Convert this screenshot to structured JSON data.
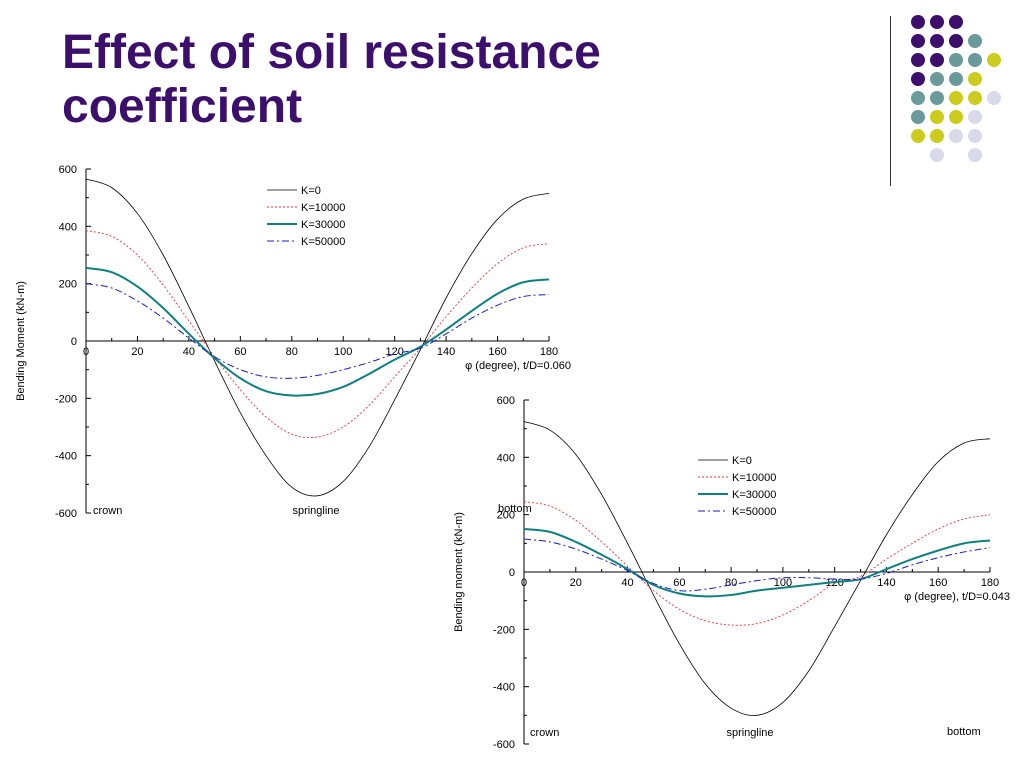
{
  "slide": {
    "title_line1": "Effect of soil resistance",
    "title_line2": "coefficient"
  },
  "decoration": {
    "dot_colors": {
      "purple": "#3b0f6b",
      "teal": "#6a9a9a",
      "yellow": "#cccc1e",
      "lavender": "#d9d9ea"
    },
    "dot_rows": [
      [
        "purple",
        "purple",
        "purple",
        null,
        null
      ],
      [
        "purple",
        "purple",
        "purple",
        "teal",
        null
      ],
      [
        "purple",
        "purple",
        "teal",
        "teal",
        "yellow"
      ],
      [
        "purple",
        "teal",
        "teal",
        "yellow",
        null
      ],
      [
        "teal",
        "teal",
        "yellow",
        "yellow",
        "lavender"
      ],
      [
        "teal",
        "yellow",
        "yellow",
        "lavender",
        null
      ],
      [
        "yellow",
        "yellow",
        "lavender",
        "lavender",
        null
      ],
      [
        null,
        "lavender",
        null,
        "lavender",
        null
      ]
    ]
  },
  "chart_data": [
    {
      "type": "line",
      "ylabel": "Bending Moment (kN-m)",
      "xlabel": "φ (degree), t/D=0.060",
      "xlim": [
        0,
        180
      ],
      "ylim": [
        -600,
        600
      ],
      "xticks": [
        0,
        20,
        40,
        60,
        80,
        100,
        120,
        140,
        160,
        180
      ],
      "yticks": [
        600,
        400,
        200,
        0,
        -200,
        -400,
        -600
      ],
      "legend_position": "top-right",
      "annotations": [
        "crown",
        "springline"
      ],
      "x": [
        0,
        10,
        20,
        30,
        40,
        50,
        60,
        70,
        80,
        90,
        100,
        110,
        120,
        130,
        140,
        150,
        160,
        170,
        180
      ],
      "series": [
        {
          "name": "K=0",
          "color": "#000000",
          "style": "solid",
          "values": [
            565,
            535,
            445,
            300,
            120,
            -70,
            -250,
            -400,
            -510,
            -540,
            -490,
            -370,
            -205,
            -30,
            150,
            305,
            425,
            495,
            515
          ]
        },
        {
          "name": "K=10000",
          "color": "#ee3333",
          "style": "dotted",
          "values": [
            385,
            365,
            300,
            195,
            70,
            -55,
            -170,
            -265,
            -325,
            -335,
            -300,
            -225,
            -125,
            -25,
            85,
            185,
            270,
            325,
            340
          ]
        },
        {
          "name": "K=30000",
          "color": "#0e8080",
          "style": "solid-thick",
          "values": [
            255,
            240,
            190,
            115,
            25,
            -60,
            -130,
            -175,
            -190,
            -185,
            -160,
            -115,
            -65,
            -20,
            40,
            105,
            165,
            205,
            215
          ]
        },
        {
          "name": "K=50000",
          "color": "#1c1ccc",
          "style": "dashdot",
          "values": [
            200,
            185,
            140,
            80,
            10,
            -55,
            -100,
            -125,
            -130,
            -120,
            -100,
            -75,
            -45,
            -25,
            25,
            80,
            125,
            155,
            162
          ]
        }
      ]
    },
    {
      "type": "line",
      "ylabel": "Bending moment (kN-m)",
      "xlabel": "φ (degree), t/D=0.043",
      "xlim": [
        0,
        180
      ],
      "ylim": [
        -600,
        600
      ],
      "xticks": [
        0,
        20,
        40,
        60,
        80,
        100,
        120,
        140,
        160,
        180
      ],
      "yticks": [
        600,
        400,
        200,
        0,
        -200,
        -400,
        -600
      ],
      "legend_position": "top-right",
      "annotations": [
        "crown",
        "springline",
        "bottom",
        "bottom"
      ],
      "x": [
        0,
        10,
        20,
        30,
        40,
        50,
        60,
        70,
        80,
        90,
        100,
        110,
        120,
        130,
        140,
        150,
        160,
        170,
        180
      ],
      "series": [
        {
          "name": "K=0",
          "color": "#000000",
          "style": "solid",
          "values": [
            525,
            495,
            410,
            270,
            100,
            -80,
            -250,
            -390,
            -475,
            -500,
            -455,
            -345,
            -190,
            -30,
            130,
            270,
            385,
            450,
            465
          ]
        },
        {
          "name": "K=10000",
          "color": "#ee3333",
          "style": "dotted",
          "values": [
            245,
            230,
            180,
            105,
            20,
            -65,
            -130,
            -170,
            -185,
            -180,
            -150,
            -100,
            -40,
            -15,
            45,
            100,
            150,
            185,
            200
          ]
        },
        {
          "name": "K=30000",
          "color": "#0e8080",
          "style": "solid-thick",
          "values": [
            150,
            140,
            105,
            60,
            10,
            -45,
            -75,
            -85,
            -80,
            -65,
            -55,
            -45,
            -35,
            -25,
            10,
            45,
            75,
            100,
            110
          ]
        },
        {
          "name": "K=50000",
          "color": "#1c1ccc",
          "style": "dashdot",
          "values": [
            115,
            105,
            80,
            45,
            5,
            -40,
            -65,
            -60,
            -45,
            -30,
            -20,
            -20,
            -25,
            -25,
            -5,
            25,
            50,
            70,
            85
          ]
        }
      ]
    }
  ]
}
